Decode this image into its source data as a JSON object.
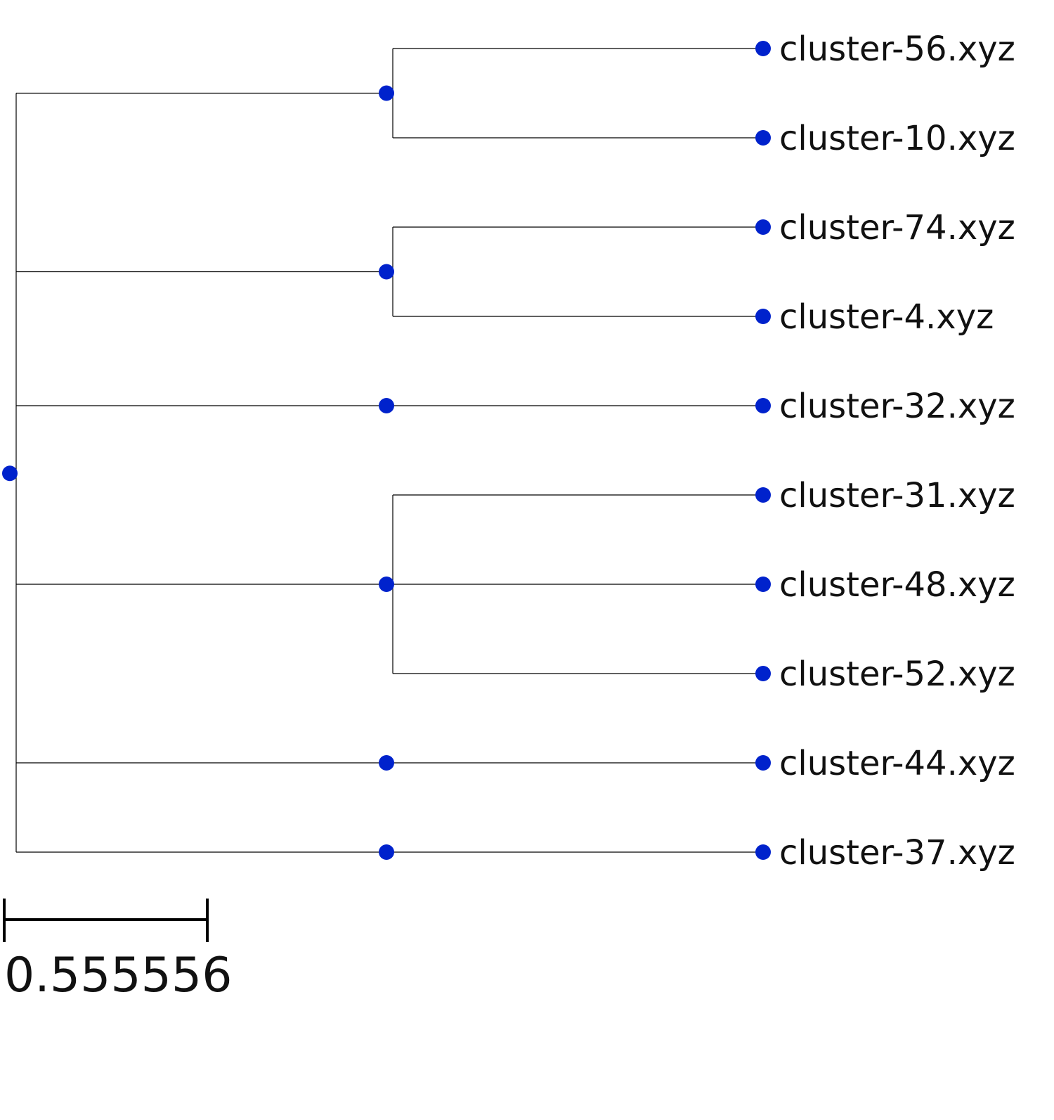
{
  "tree": {
    "node_color": "#0022cc",
    "branch_color": "#000000",
    "root": {
      "id": "root",
      "children": [
        {
          "id": "clade-1",
          "children": [
            {
              "leaf": "cluster-56.xyz"
            },
            {
              "leaf": "cluster-10.xyz"
            }
          ]
        },
        {
          "id": "clade-2",
          "children": [
            {
              "leaf": "cluster-74.xyz"
            },
            {
              "leaf": "cluster-4.xyz"
            }
          ]
        },
        {
          "id": "clade-3",
          "children": [
            {
              "leaf": "cluster-32.xyz"
            }
          ]
        },
        {
          "id": "clade-4",
          "children": [
            {
              "leaf": "cluster-31.xyz"
            },
            {
              "leaf": "cluster-48.xyz"
            },
            {
              "leaf": "cluster-52.xyz"
            }
          ]
        },
        {
          "id": "clade-5",
          "children": [
            {
              "leaf": "cluster-44.xyz"
            }
          ]
        },
        {
          "id": "clade-6",
          "children": [
            {
              "leaf": "cluster-37.xyz"
            }
          ]
        }
      ]
    },
    "leaves": [
      "cluster-56.xyz",
      "cluster-10.xyz",
      "cluster-74.xyz",
      "cluster-4.xyz",
      "cluster-32.xyz",
      "cluster-31.xyz",
      "cluster-48.xyz",
      "cluster-52.xyz",
      "cluster-44.xyz",
      "cluster-37.xyz"
    ]
  },
  "scale_bar": {
    "label": "0.555556"
  }
}
